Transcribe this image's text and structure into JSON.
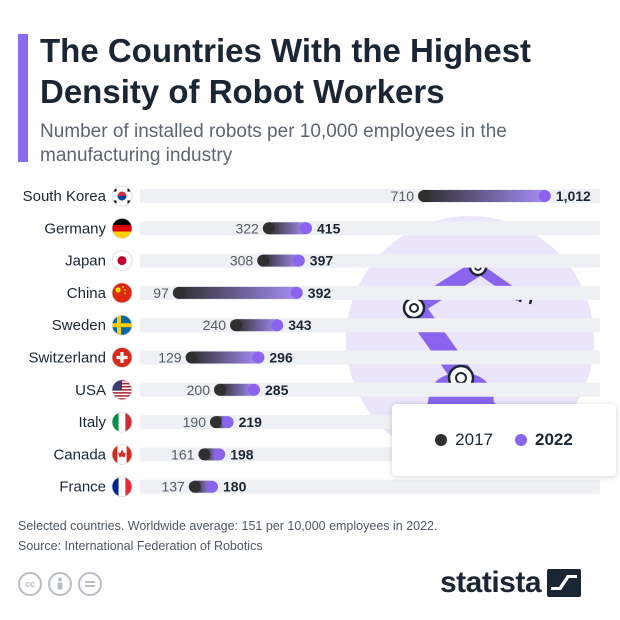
{
  "header": {
    "title": "The Countries With the Highest Density of Robot Workers",
    "subtitle": "Number of installed robots per 10,000 employees in the manufacturing industry"
  },
  "chart_data": {
    "type": "dumbbell",
    "categories": [
      "South Korea",
      "Germany",
      "Japan",
      "China",
      "Sweden",
      "Switzerland",
      "USA",
      "Italy",
      "Canada",
      "France"
    ],
    "series": [
      {
        "name": "2017",
        "values": [
          710,
          322,
          308,
          97,
          240,
          129,
          200,
          190,
          161,
          137
        ]
      },
      {
        "name": "2022",
        "values": [
          1012,
          415,
          397,
          392,
          343,
          296,
          285,
          219,
          198,
          180
        ]
      }
    ],
    "labels_2017": [
      "710",
      "322",
      "308",
      "97",
      "240",
      "129",
      "200",
      "190",
      "161",
      "137"
    ],
    "labels_2022": [
      "1,012",
      "415",
      "397",
      "392",
      "343",
      "296",
      "285",
      "219",
      "198",
      "180"
    ],
    "xlim": [
      0,
      1150
    ],
    "legend_placement": "bottom-right",
    "colors": {
      "2017": "#2f2f2f",
      "2022": "#8a63ee",
      "track": "#eef0f4"
    },
    "flags": [
      "south-korea-flag-icon",
      "germany-flag-icon",
      "japan-flag-icon",
      "china-flag-icon",
      "sweden-flag-icon",
      "switzerland-flag-icon",
      "usa-flag-icon",
      "italy-flag-icon",
      "canada-flag-icon",
      "france-flag-icon"
    ]
  },
  "legend": {
    "label_2017": "2017",
    "label_2022": "2022"
  },
  "footer": {
    "note": "Selected countries. Worldwide average: 151 per 10,000 employees in 2022.",
    "source": "Source: International Federation of Robotics",
    "brand": "statista",
    "license_icons": [
      "cc-icon",
      "by-icon",
      "nd-icon"
    ]
  },
  "colors": {
    "accent": "#8a6cf0",
    "title": "#1a2633"
  }
}
